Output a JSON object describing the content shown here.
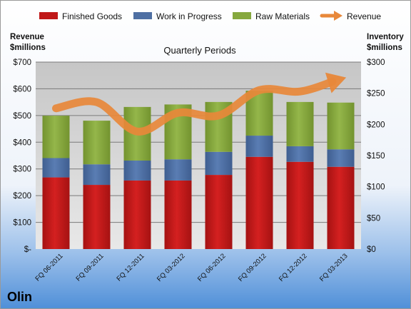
{
  "company": "Olin",
  "colors": {
    "finished_goods": "#c01818",
    "work_in_progress": "#4e6fa3",
    "raw_materials": "#86a83e",
    "revenue": "#e8883a",
    "plot_bg_top": "#c9c9c9",
    "plot_bg_bottom": "#e6e6e6"
  },
  "chart_data": {
    "type": "bar",
    "stacked": true,
    "title": "Quarterly Periods",
    "y_left_label_line1": "Revenue",
    "y_left_label_line2": "$millions",
    "y_right_label_line1": "Inventory",
    "y_right_label_line2": "$millions",
    "categories": [
      "FQ 06-2011",
      "FQ 09-2011",
      "FQ 12-2011",
      "FQ 03-2012",
      "FQ 06-2012",
      "FQ 09-2012",
      "FQ 12-2012",
      "FQ 03-2013"
    ],
    "series": [
      {
        "name": "Finished Goods",
        "axis": "right",
        "values": [
          115,
          103,
          110,
          110,
          119,
          148,
          140,
          132
        ]
      },
      {
        "name": "Work in Progress",
        "axis": "right",
        "values": [
          31,
          33,
          32,
          34,
          37,
          34,
          25,
          28
        ]
      },
      {
        "name": "Raw Materials",
        "axis": "right",
        "values": [
          68,
          70,
          86,
          88,
          80,
          72,
          71,
          75
        ]
      },
      {
        "name": "Revenue",
        "type": "line",
        "axis": "left",
        "values": [
          527,
          550,
          440,
          510,
          500,
          595,
          590,
          636
        ]
      }
    ],
    "y_left": {
      "min": 0,
      "max": 700,
      "ticks": [
        0,
        100,
        200,
        300,
        400,
        500,
        600,
        700
      ],
      "tick_labels": [
        "$-",
        "$100",
        "$200",
        "$300",
        "$400",
        "$500",
        "$600",
        "$700"
      ]
    },
    "y_right": {
      "min": 0,
      "max": 300,
      "ticks": [
        0,
        50,
        100,
        150,
        200,
        250,
        300
      ],
      "tick_labels": [
        "$0",
        "$50",
        "$100",
        "$150",
        "$200",
        "$250",
        "$300"
      ]
    },
    "grid": true,
    "legend_position": "top"
  }
}
